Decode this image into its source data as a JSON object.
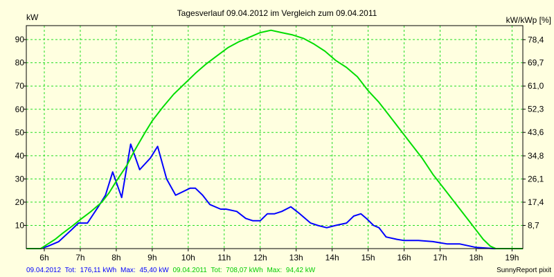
{
  "chart_data": {
    "type": "line",
    "title": "Tagesverlauf 09.04.2012 im Vergleich zum 09.04.2011",
    "ylabel": "kW",
    "y2label": "kW/kWp [%]",
    "xlim": [
      5.5,
      19.3
    ],
    "ylim": [
      0,
      96
    ],
    "x_ticks": [
      6,
      7,
      8,
      9,
      10,
      11,
      12,
      13,
      14,
      15,
      16,
      17,
      18,
      19
    ],
    "x_tick_labels": [
      "6h",
      "7h",
      "8h",
      "9h",
      "10h",
      "11h",
      "12h",
      "13h",
      "14h",
      "15h",
      "16h",
      "17h",
      "18h",
      "19h"
    ],
    "y_ticks": [
      10,
      20,
      30,
      40,
      50,
      60,
      70,
      80,
      90
    ],
    "y_tick_labels": [
      "10",
      "20",
      "30",
      "40",
      "50",
      "60",
      "70",
      "80",
      "90"
    ],
    "y2_ticks": [
      8.7,
      17.4,
      26.1,
      34.8,
      43.6,
      52.3,
      61.0,
      69.7,
      78.4
    ],
    "y2_tick_labels": [
      "8,7",
      "17,4",
      "26,1",
      "34,8",
      "43,6",
      "52,3",
      "61,0",
      "69,7",
      "78,4"
    ],
    "y2_ratio": 0.8715,
    "grid": true,
    "background": "#ffffe0",
    "grid_color": "#22dd22",
    "series": [
      {
        "color": "#0000ff",
        "x": [
          5.5,
          5.9,
          6.1,
          6.4,
          6.75,
          6.95,
          7.2,
          7.5,
          7.7,
          7.9,
          8.15,
          8.4,
          8.65,
          8.95,
          9.15,
          9.4,
          9.65,
          10.05,
          10.2,
          10.4,
          10.6,
          10.9,
          11.05,
          11.35,
          11.6,
          11.8,
          12.0,
          12.2,
          12.4,
          12.6,
          12.85,
          13.1,
          13.4,
          13.6,
          13.85,
          14.1,
          14.4,
          14.6,
          14.8,
          14.95,
          15.15,
          15.3,
          15.5,
          15.8,
          16.0,
          16.4,
          16.8,
          17.2,
          17.55,
          18.0,
          18.5,
          19.0,
          19.3
        ],
        "y": [
          0,
          0,
          1,
          3,
          8,
          11,
          11,
          18,
          23,
          33,
          22,
          45,
          34,
          39,
          44,
          30,
          23,
          26,
          26,
          23,
          19,
          17,
          17,
          16,
          13,
          12,
          12,
          15,
          15,
          16,
          18,
          15,
          11,
          10,
          9,
          10,
          11,
          14,
          15,
          13,
          10,
          9,
          5,
          4,
          3.5,
          3.5,
          3,
          2,
          2,
          0.5,
          0,
          0,
          0
        ]
      },
      {
        "color": "#00dd00",
        "x": [
          5.5,
          5.9,
          6.0,
          6.3,
          6.5,
          6.8,
          7.0,
          7.3,
          7.6,
          7.8,
          8.0,
          8.3,
          8.5,
          8.8,
          9.0,
          9.3,
          9.6,
          9.9,
          10.2,
          10.5,
          10.8,
          11.1,
          11.4,
          11.7,
          12.0,
          12.3,
          12.6,
          12.9,
          13.2,
          13.5,
          13.8,
          14.1,
          14.4,
          14.7,
          15.0,
          15.3,
          15.6,
          15.9,
          16.2,
          16.5,
          16.8,
          17.1,
          17.4,
          17.7,
          18.0,
          18.2,
          18.4,
          18.55,
          18.7,
          19.0,
          19.3
        ],
        "y": [
          0,
          0,
          1,
          4,
          6.5,
          10,
          12.5,
          16,
          20,
          24,
          29,
          36,
          42,
          50,
          55,
          61,
          66.5,
          71,
          75.5,
          79.5,
          83,
          86.5,
          89,
          91,
          93,
          94,
          93,
          92,
          90.5,
          88,
          85,
          81,
          78,
          74,
          68,
          63,
          57,
          51,
          45,
          39,
          32,
          26,
          20,
          14,
          8,
          4,
          1,
          0,
          0,
          0,
          0
        ]
      }
    ]
  },
  "footer": {
    "s1_date": "09.04.2012",
    "s1_tot_label": "Tot:",
    "s1_tot": "176,11 kWh",
    "s1_max_label": "Max:",
    "s1_max": "45,40 kW",
    "s2_date": "09.04.2011",
    "s2_tot_label": "Tot:",
    "s2_tot": "708,07 kWh",
    "s2_max_label": "Max:",
    "s2_max": "94,42 kW",
    "brand": "SunnyReport pixit"
  }
}
